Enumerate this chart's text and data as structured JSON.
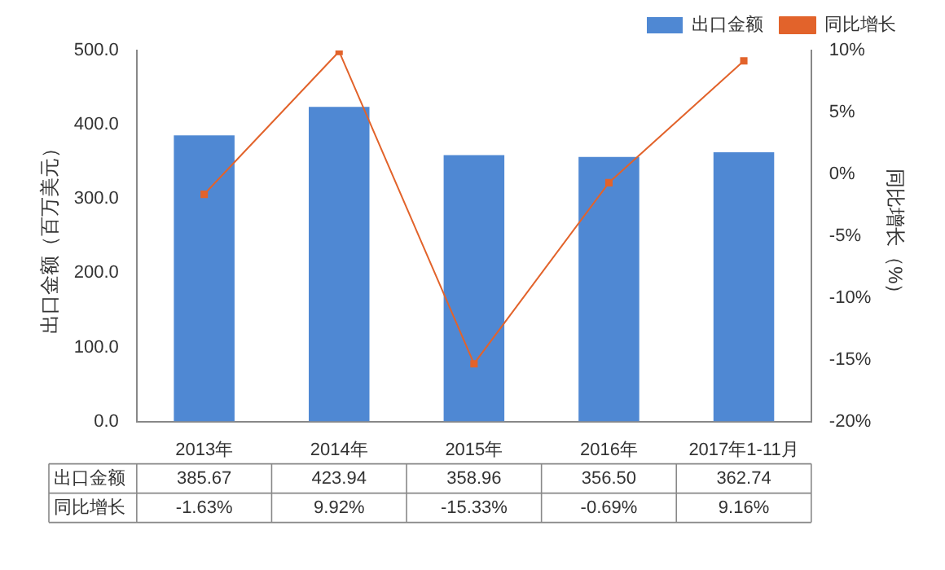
{
  "chart_data": {
    "type": "bar",
    "ylabel": "出口金额（百万美元）",
    "y2label": "同比增长（%）",
    "categories": [
      "2013年",
      "2014年",
      "2015年",
      "2016年",
      "2017年1-11月"
    ],
    "series": [
      {
        "name": "出口金额",
        "color": "#4f88d3",
        "values": [
          385.67,
          423.94,
          358.96,
          356.5,
          362.74
        ],
        "value_labels": [
          "385.67",
          "423.94",
          "358.96",
          "356.50",
          "362.74"
        ]
      },
      {
        "name": "同比增长",
        "type": "line",
        "axis": "y2",
        "color": "#e2632b",
        "marker": "square",
        "values": [
          -1.63,
          9.92,
          -15.33,
          -0.69,
          9.16
        ],
        "value_labels": [
          "-1.63%",
          "9.92%",
          "-15.33%",
          "-0.69%",
          "9.16%"
        ]
      }
    ],
    "ylim": [
      0,
      500
    ],
    "yticks": [
      {
        "value": 0,
        "label": "0.0"
      },
      {
        "value": 100,
        "label": "100.0"
      },
      {
        "value": 200,
        "label": "200.0"
      },
      {
        "value": 300,
        "label": "300.0"
      },
      {
        "value": 400,
        "label": "400.0"
      },
      {
        "value": 500,
        "label": "500.0"
      }
    ],
    "y2lim": [
      -20,
      10
    ],
    "y2ticks": [
      {
        "value": -20,
        "label": "-20%"
      },
      {
        "value": -15,
        "label": "-15%"
      },
      {
        "value": -10,
        "label": "-10%"
      },
      {
        "value": -5,
        "label": "-5%"
      },
      {
        "value": 0,
        "label": "0%"
      },
      {
        "value": 5,
        "label": "5%"
      },
      {
        "value": 10,
        "label": "10%"
      }
    ],
    "grid": false,
    "legend": "top right"
  }
}
